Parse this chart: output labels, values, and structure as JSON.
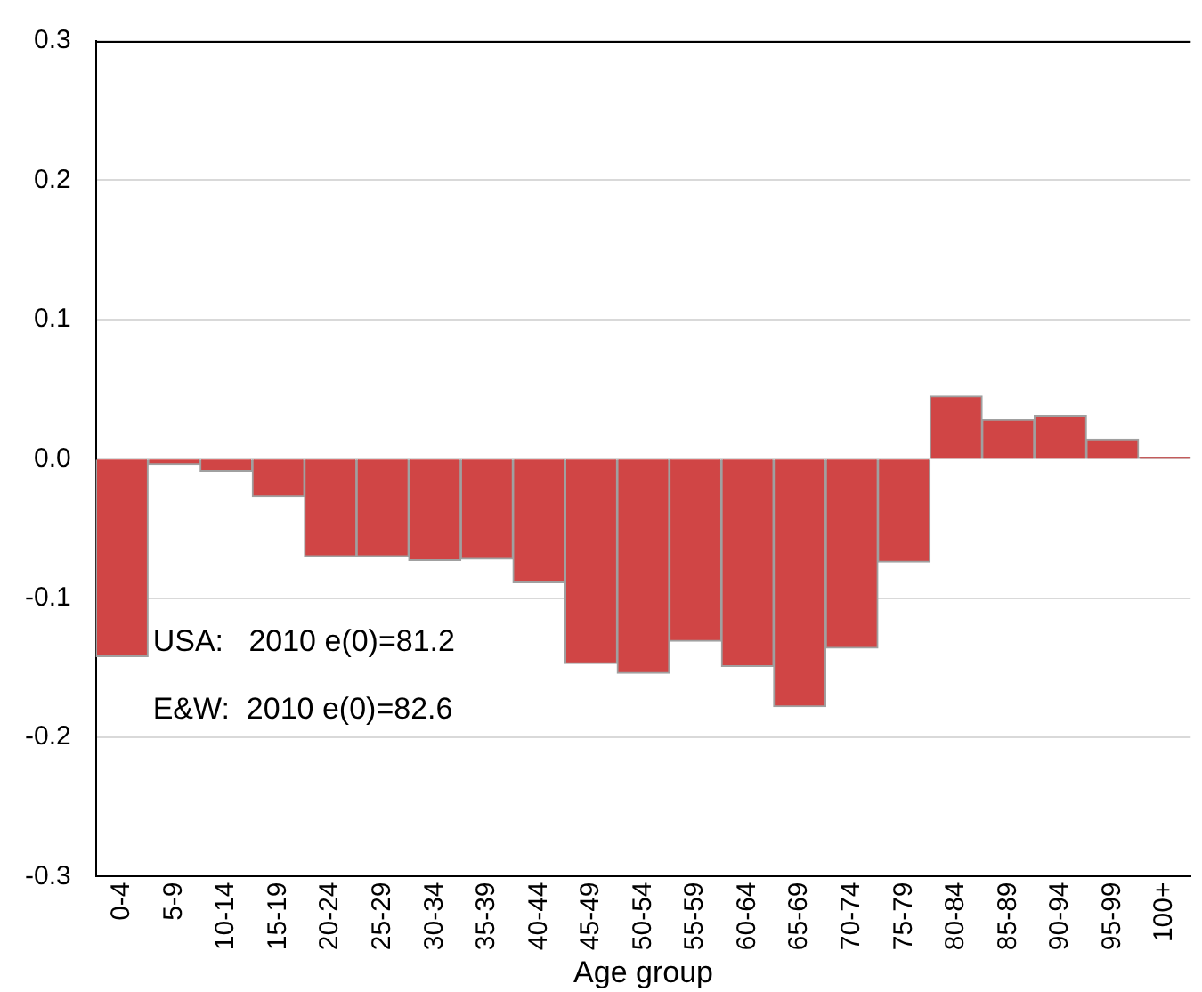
{
  "chart_data": {
    "type": "bar",
    "xlabel": "Age group",
    "categories": [
      "0-4",
      "5-9",
      "10-14",
      "15-19",
      "20-24",
      "25-29",
      "30-34",
      "35-39",
      "40-44",
      "45-49",
      "50-54",
      "55-59",
      "60-64",
      "65-69",
      "70-74",
      "75-79",
      "80-84",
      "85-89",
      "90-94",
      "95-99",
      "100+"
    ],
    "values": [
      -0.142,
      -0.004,
      -0.009,
      -0.027,
      -0.07,
      -0.07,
      -0.073,
      -0.072,
      -0.089,
      -0.147,
      -0.154,
      -0.131,
      -0.149,
      -0.178,
      -0.136,
      -0.074,
      0.045,
      0.028,
      0.031,
      0.014,
      0.001
    ],
    "color": "#d04545",
    "ylim": [
      -0.3,
      0.3
    ],
    "yticks": [
      {
        "value": -0.3,
        "label": "-0.3"
      },
      {
        "value": -0.2,
        "label": "-0.2"
      },
      {
        "value": -0.1,
        "label": "-0.1"
      },
      {
        "value": 0,
        "label": "0.0"
      },
      {
        "value": 0.1,
        "label": "0.1"
      },
      {
        "value": 0.2,
        "label": "0.2"
      },
      {
        "value": 0.3,
        "label": "0.3"
      }
    ],
    "grid": "y",
    "legend": false,
    "annotations": [
      "USA:   2010 e(0)=81.2",
      "E&W:  2010 e(0)=82.6"
    ]
  }
}
